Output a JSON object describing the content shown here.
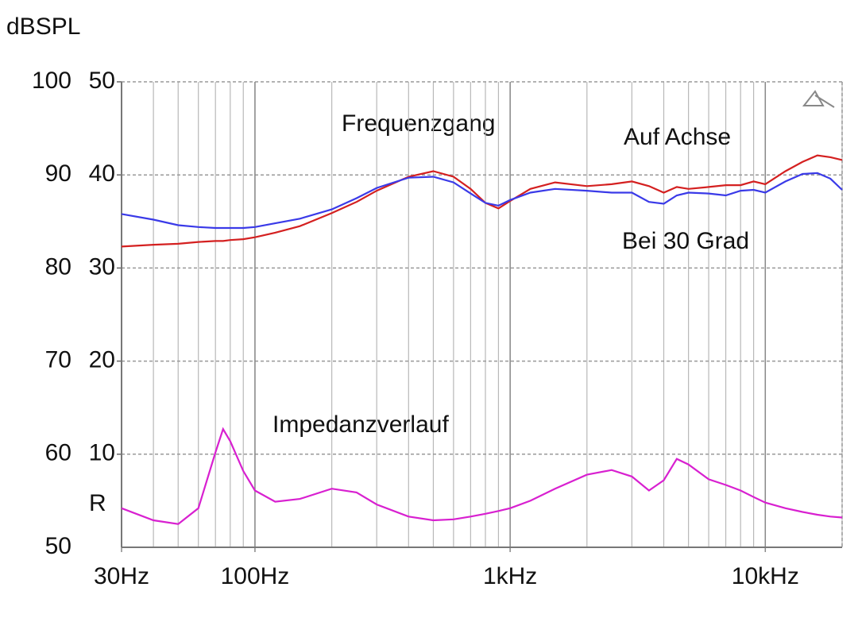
{
  "chart_data": {
    "type": "line",
    "ylabel": "dBSPL",
    "y2label": "R",
    "annotations": [
      "Frequenzgang"
    ],
    "xscale": "log",
    "grid": true,
    "x": [
      30,
      40,
      50,
      60,
      70,
      75,
      80,
      90,
      100,
      120,
      150,
      200,
      250,
      300,
      400,
      500,
      600,
      700,
      800,
      900,
      1000,
      1200,
      1500,
      2000,
      2500,
      3000,
      3500,
      4000,
      4500,
      5000,
      6000,
      7000,
      8000,
      9000,
      10000,
      12000,
      14000,
      16000,
      18000,
      20000
    ],
    "xlim": [
      30,
      20000
    ],
    "xticks": [
      {
        "value": 30,
        "label": "30Hz"
      },
      {
        "value": 100,
        "label": "100Hz"
      },
      {
        "value": 1000,
        "label": "1kHz"
      },
      {
        "value": 10000,
        "label": "10kHz"
      }
    ],
    "ylim": [
      50,
      100
    ],
    "yticks": [
      50,
      60,
      70,
      80,
      90,
      100
    ],
    "y2lim": [
      0,
      50
    ],
    "y2ticks": [
      10,
      20,
      30,
      40,
      50
    ],
    "series": [
      {
        "name": "Auf Achse",
        "color": "#d42020",
        "values": [
          82.3,
          82.5,
          82.6,
          82.8,
          82.9,
          82.9,
          83.0,
          83.1,
          83.3,
          83.8,
          84.5,
          85.9,
          87.1,
          88.3,
          89.8,
          90.4,
          89.8,
          88.5,
          87.0,
          86.4,
          87.2,
          88.5,
          89.2,
          88.8,
          89.0,
          89.3,
          88.8,
          88.1,
          88.7,
          88.5,
          88.7,
          88.9,
          88.9,
          89.3,
          89.0,
          90.4,
          91.4,
          92.1,
          91.9,
          91.6
        ]
      },
      {
        "name": "Bei 30 Grad",
        "color": "#3a3ae8",
        "values": [
          85.8,
          85.2,
          84.6,
          84.4,
          84.3,
          84.3,
          84.3,
          84.3,
          84.4,
          84.8,
          85.3,
          86.3,
          87.5,
          88.6,
          89.7,
          89.8,
          89.2,
          88.0,
          87.0,
          86.7,
          87.3,
          88.1,
          88.5,
          88.3,
          88.1,
          88.1,
          87.1,
          86.9,
          87.8,
          88.1,
          88.0,
          87.8,
          88.3,
          88.4,
          88.1,
          89.3,
          90.1,
          90.2,
          89.6,
          88.4
        ]
      },
      {
        "name": "Impedanzverlauf",
        "color": "#d820d0",
        "axis": "y2",
        "values": [
          4.2,
          2.9,
          2.5,
          4.2,
          10.2,
          12.7,
          11.4,
          8.2,
          6.1,
          4.9,
          5.2,
          6.3,
          5.9,
          4.6,
          3.3,
          2.9,
          3.0,
          3.3,
          3.6,
          3.9,
          4.2,
          5.0,
          6.3,
          7.8,
          8.3,
          7.6,
          6.1,
          7.2,
          9.5,
          8.9,
          7.3,
          6.7,
          6.1,
          5.4,
          4.8,
          4.2,
          3.8,
          3.5,
          3.3,
          3.2
        ]
      }
    ]
  }
}
